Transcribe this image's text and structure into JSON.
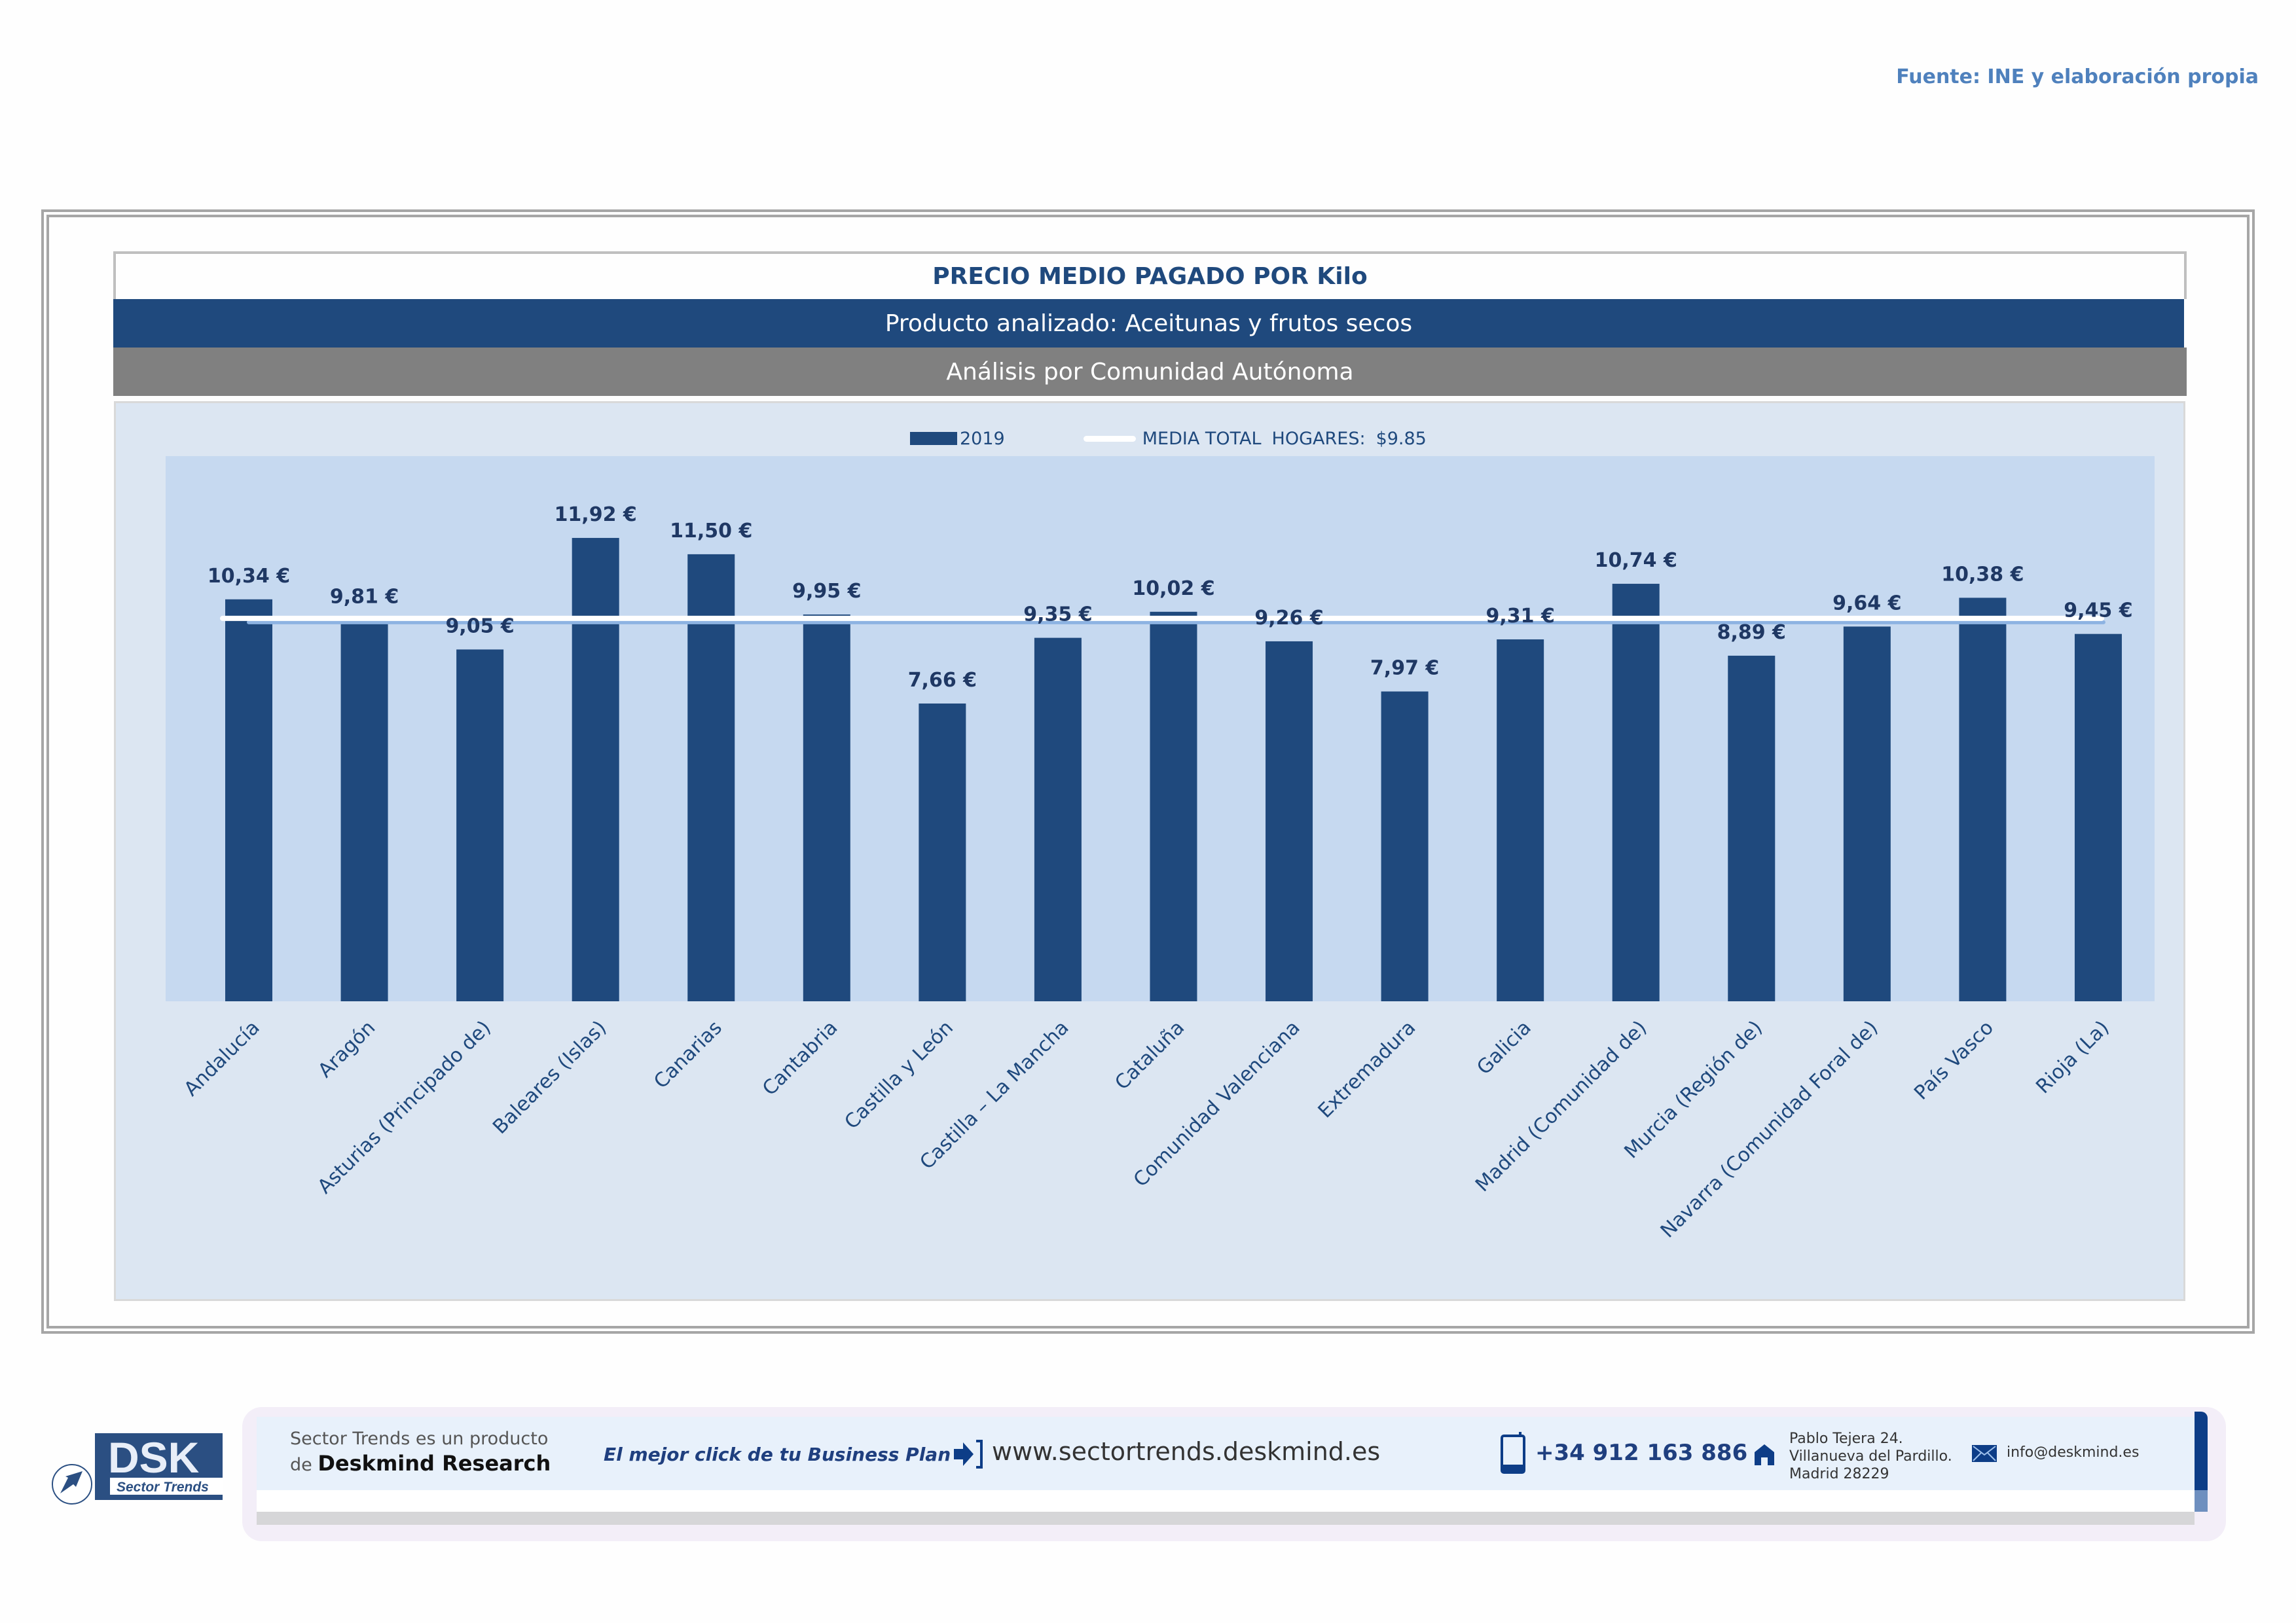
{
  "source": "Fuente: INE y elaboración propia",
  "header": {
    "title": "PRECIO MEDIO PAGADO POR Kilo",
    "product": "Producto analizado: Aceitunas y frutos secos",
    "analysis": "Análisis por Comunidad Autónoma"
  },
  "colors": {
    "bar": "#1f497d",
    "plot_bg": "#c6d9f0",
    "chart_bg": "#dce6f2",
    "mean_line": "#ffffff",
    "mean_line_shadow": "#8db3e2",
    "band_blue": "#1f497d",
    "band_gray": "#808080",
    "label": "#1f3864"
  },
  "legend": {
    "series_label": "2019",
    "mean_label": "MEDIA TOTAL",
    "mean_label_2": "HOGARES:",
    "mean_value": "$9.85"
  },
  "chart_data": {
    "type": "bar",
    "title": "PRECIO MEDIO PAGADO POR Kilo",
    "xlabel": "",
    "ylabel": "",
    "ylim": [
      0,
      14
    ],
    "grid": false,
    "legend_position": "top",
    "categories": [
      "Andalucía",
      "Aragón",
      "Asturias (Principado de)",
      "Baleares (Islas)",
      "Canarias",
      "Cantabria",
      "Castilla y León",
      "Castilla – La Mancha",
      "Cataluña",
      "Comunidad Valenciana",
      "Extremadura",
      "Galicia",
      "Madrid (Comunidad de)",
      "Murcia (Región de)",
      "Navarra (Comunidad Foral de)",
      "País Vasco",
      "Rioja (La)"
    ],
    "series": [
      {
        "name": "2019",
        "type": "bar",
        "values": [
          10.34,
          9.81,
          9.05,
          11.92,
          11.5,
          9.95,
          7.66,
          9.35,
          10.02,
          9.26,
          7.97,
          9.31,
          10.74,
          8.89,
          9.64,
          10.38,
          9.45
        ],
        "labels": [
          "10,34 €",
          "9,81 €",
          "9,05 €",
          "11,92 €",
          "11,50 €",
          "9,95 €",
          "7,66 €",
          "9,35 €",
          "10,02 €",
          "9,26 €",
          "7,97 €",
          "9,31 €",
          "10,74 €",
          "8,89 €",
          "9,64 €",
          "10,38 €",
          "9,45 €"
        ]
      },
      {
        "name": "MEDIA TOTAL  HOGARES:  $9.85",
        "type": "line",
        "value": 9.85
      }
    ]
  },
  "footer": {
    "logo_text": "DSK",
    "logo_subtext": "Sector Trends",
    "product_line1": "Sector Trends es un producto",
    "product_line2_prefix": "de",
    "product_line2_brand": "Deskmind Research",
    "slogan": "El mejor click de tu Business Plan",
    "website": "www.sectortrends.deskmind.es",
    "phone": "+34 912 163 886",
    "address_line1": "Pablo Tejera 24.",
    "address_line2": "Villanueva del Pardillo.",
    "address_line3": "Madrid 28229",
    "email": "info@deskmind.es"
  }
}
